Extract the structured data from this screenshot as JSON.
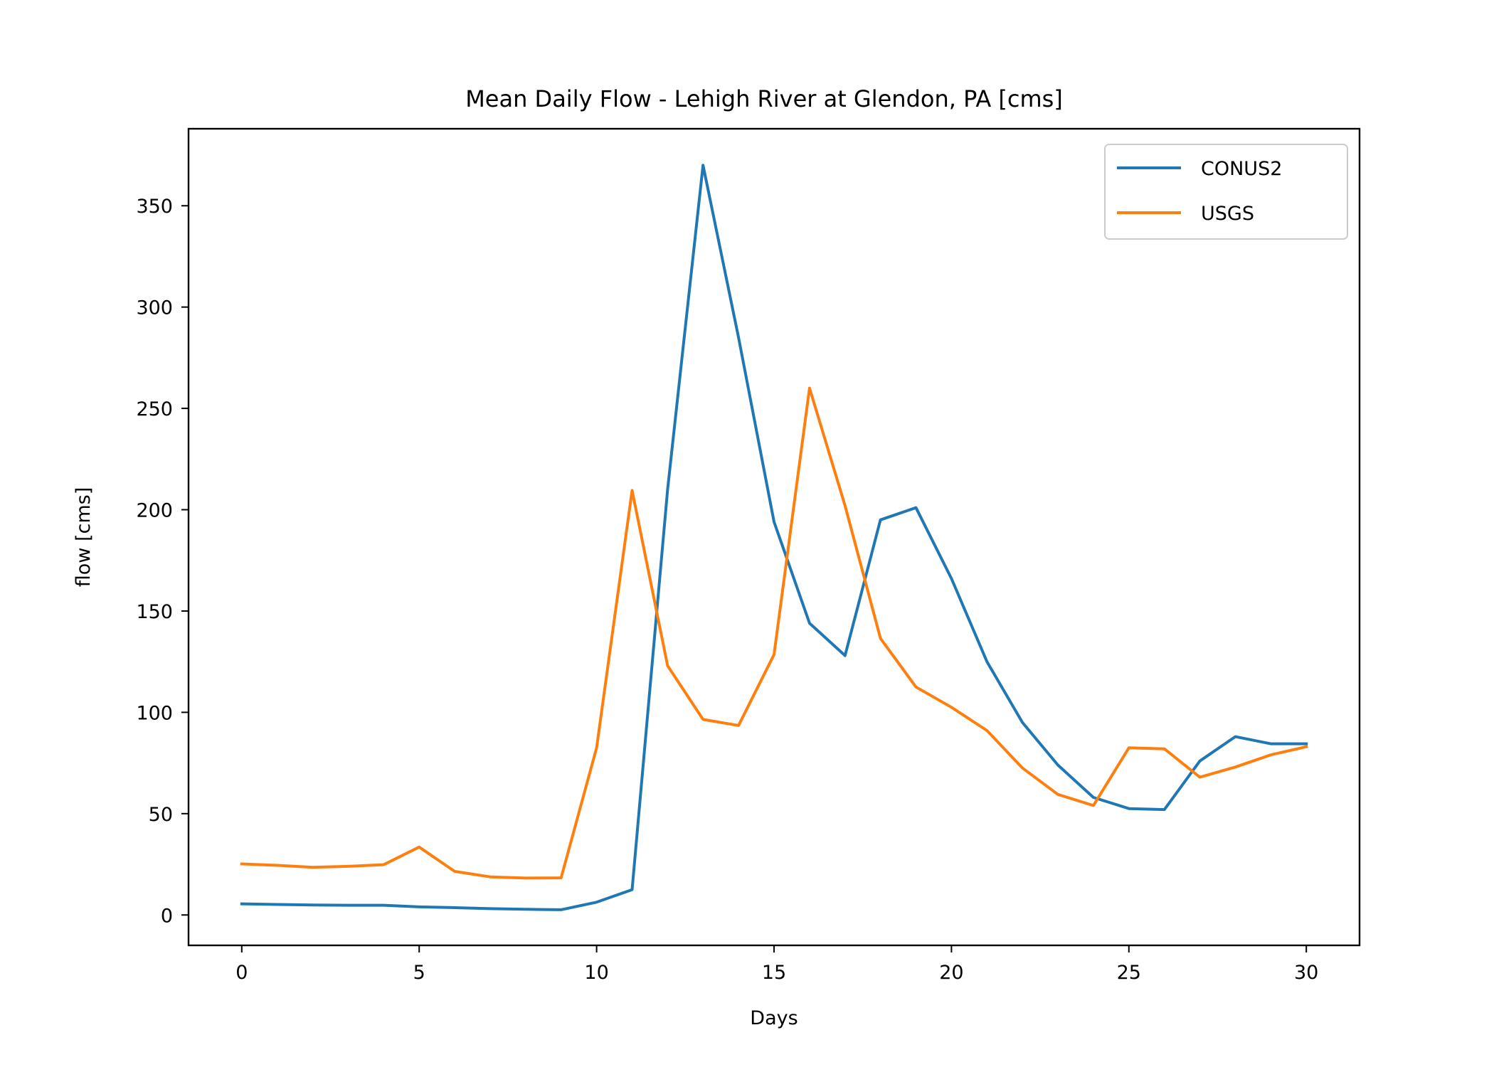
{
  "chart_data": {
    "type": "line",
    "title": "Mean Daily Flow - Lehigh River at Glendon, PA [cms]",
    "xlabel": "Days",
    "ylabel": "flow [cms]",
    "xlim": [
      -1.5,
      31.5
    ],
    "ylim": [
      -15,
      388
    ],
    "xticks": [
      0,
      5,
      10,
      15,
      20,
      25,
      30
    ],
    "yticks": [
      0,
      50,
      100,
      150,
      200,
      250,
      300,
      350
    ],
    "grid": false,
    "legend_position": "top-right",
    "x": [
      0,
      1,
      2,
      3,
      4,
      5,
      6,
      7,
      8,
      9,
      10,
      11,
      12,
      13,
      14,
      15,
      16,
      17,
      18,
      19,
      20,
      21,
      22,
      23,
      24,
      25,
      26,
      27,
      28,
      29,
      30
    ],
    "series": [
      {
        "name": "CONUS2",
        "color": "#1f77b4",
        "values": [
          5.5,
          5.2,
          4.9,
          4.8,
          4.8,
          4.0,
          3.6,
          3.1,
          2.8,
          2.6,
          6.3,
          12.5,
          210,
          370,
          285,
          194,
          144,
          128,
          195,
          201,
          166,
          125,
          95,
          74,
          58,
          52.5,
          52,
          76,
          88,
          84.5,
          84.5
        ]
      },
      {
        "name": "USGS",
        "color": "#ff7f0e",
        "values": [
          25.2,
          24.5,
          23.5,
          24.0,
          24.8,
          33.5,
          21.5,
          18.8,
          18.2,
          18.3,
          82.5,
          209.5,
          123,
          96.5,
          93.5,
          128.5,
          260,
          202,
          136.5,
          112.5,
          102.5,
          91,
          72.5,
          59.5,
          54,
          82.5,
          82,
          68,
          73,
          79,
          83
        ]
      }
    ]
  }
}
